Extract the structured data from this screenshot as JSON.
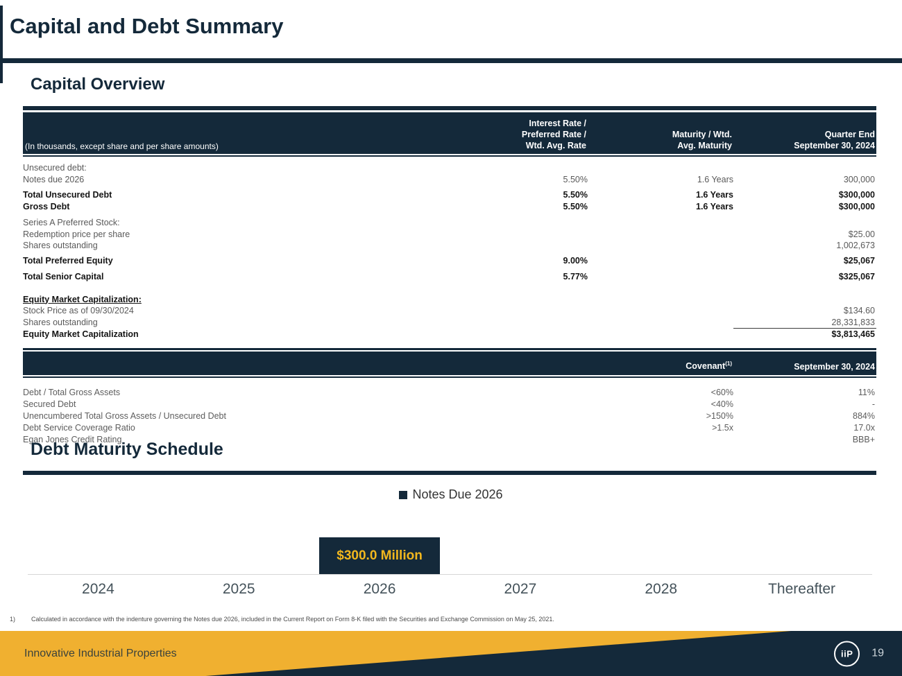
{
  "colors": {
    "navy": "#14293a",
    "gold": "#f0b030",
    "bar_label_gold": "#f2b71e",
    "axis_gray": "#d6d6d6"
  },
  "header": {
    "title": "Capital and Debt Summary"
  },
  "capital_overview": {
    "heading": "Capital Overview",
    "note": "(In thousands, except share and per share amounts)",
    "columns": {
      "rate": "Interest Rate /\nPreferred Rate /\nWtd. Avg. Rate",
      "maturity": "Maturity / Wtd.\nAvg. Maturity",
      "quarter": "Quarter End\nSeptember 30, 2024"
    },
    "rows": [
      {
        "label": "Unsecured debt:",
        "rate": "",
        "maturity": "",
        "amount": ""
      },
      {
        "label": "Notes due 2026",
        "rate": "5.50%",
        "maturity": "1.6 Years",
        "amount": "300,000"
      },
      {
        "label": "Total Unsecured Debt",
        "rate": "5.50%",
        "maturity": "1.6 Years",
        "amount": "$300,000"
      },
      {
        "label": "Gross Debt",
        "rate": "5.50%",
        "maturity": "1.6 Years",
        "amount": "$300,000"
      },
      {
        "label": "Series A Preferred Stock:",
        "rate": "",
        "maturity": "",
        "amount": ""
      },
      {
        "label": "Redemption price per share",
        "rate": "",
        "maturity": "",
        "amount": "$25.00"
      },
      {
        "label": "Shares outstanding",
        "rate": "",
        "maturity": "",
        "amount": "1,002,673"
      },
      {
        "label": "Total Preferred Equity",
        "rate": "9.00%",
        "maturity": "",
        "amount": "$25,067"
      },
      {
        "label": "Total Senior Capital",
        "rate": "5.77%",
        "maturity": "",
        "amount": "$325,067"
      },
      {
        "label": "Equity Market Capitalization:",
        "rate": "",
        "maturity": "",
        "amount": ""
      },
      {
        "label": "Stock Price as of 09/30/2024",
        "rate": "",
        "maturity": "",
        "amount": "$134.60"
      },
      {
        "label": "Shares outstanding",
        "rate": "",
        "maturity": "",
        "amount": "28,331,833"
      },
      {
        "label": "Equity Market Capitalization",
        "rate": "",
        "maturity": "",
        "amount": "$3,813,465"
      }
    ]
  },
  "covenants": {
    "columns": {
      "covenant": "Covenant",
      "covenant_sup": "(1)",
      "date": "September 30, 2024"
    },
    "rows": [
      {
        "label": "Debt / Total Gross Assets",
        "covenant": "<60%",
        "value": "11%"
      },
      {
        "label": "Secured Debt",
        "covenant": "<40%",
        "value": "-"
      },
      {
        "label": "Unencumbered Total Gross Assets / Unsecured Debt",
        "covenant": ">150%",
        "value": "884%"
      },
      {
        "label": "Debt Service Coverage Ratio",
        "covenant": ">1.5x",
        "value": "17.0x"
      },
      {
        "label": "Egan Jones Credit Rating",
        "covenant": "",
        "value": "BBB+"
      }
    ]
  },
  "debt_maturity": {
    "heading": "Debt Maturity Schedule",
    "legend": "Notes Due 2026",
    "bar_label": "$300.0 Million"
  },
  "chart_data": {
    "type": "bar",
    "title": "Debt Maturity Schedule",
    "categories": [
      "2024",
      "2025",
      "2026",
      "2027",
      "2028",
      "Thereafter"
    ],
    "series": [
      {
        "name": "Notes Due 2026",
        "values": [
          0,
          0,
          300.0,
          0,
          0,
          0
        ]
      }
    ],
    "unit": "USD millions",
    "bar_value_label": "$300.0 Million",
    "legend_position": "top-center",
    "xlabel": "",
    "ylabel": "",
    "grid": false
  },
  "footnote": {
    "marker": "1)",
    "text": "Calculated in accordance with the indenture governing the Notes due 2026, included in the Current Report on Form 8-K filed with the Securities and Exchange Commission on May 25, 2021."
  },
  "footer": {
    "company": "Innovative Industrial Properties",
    "logo_text": "iiP",
    "page": "19"
  }
}
